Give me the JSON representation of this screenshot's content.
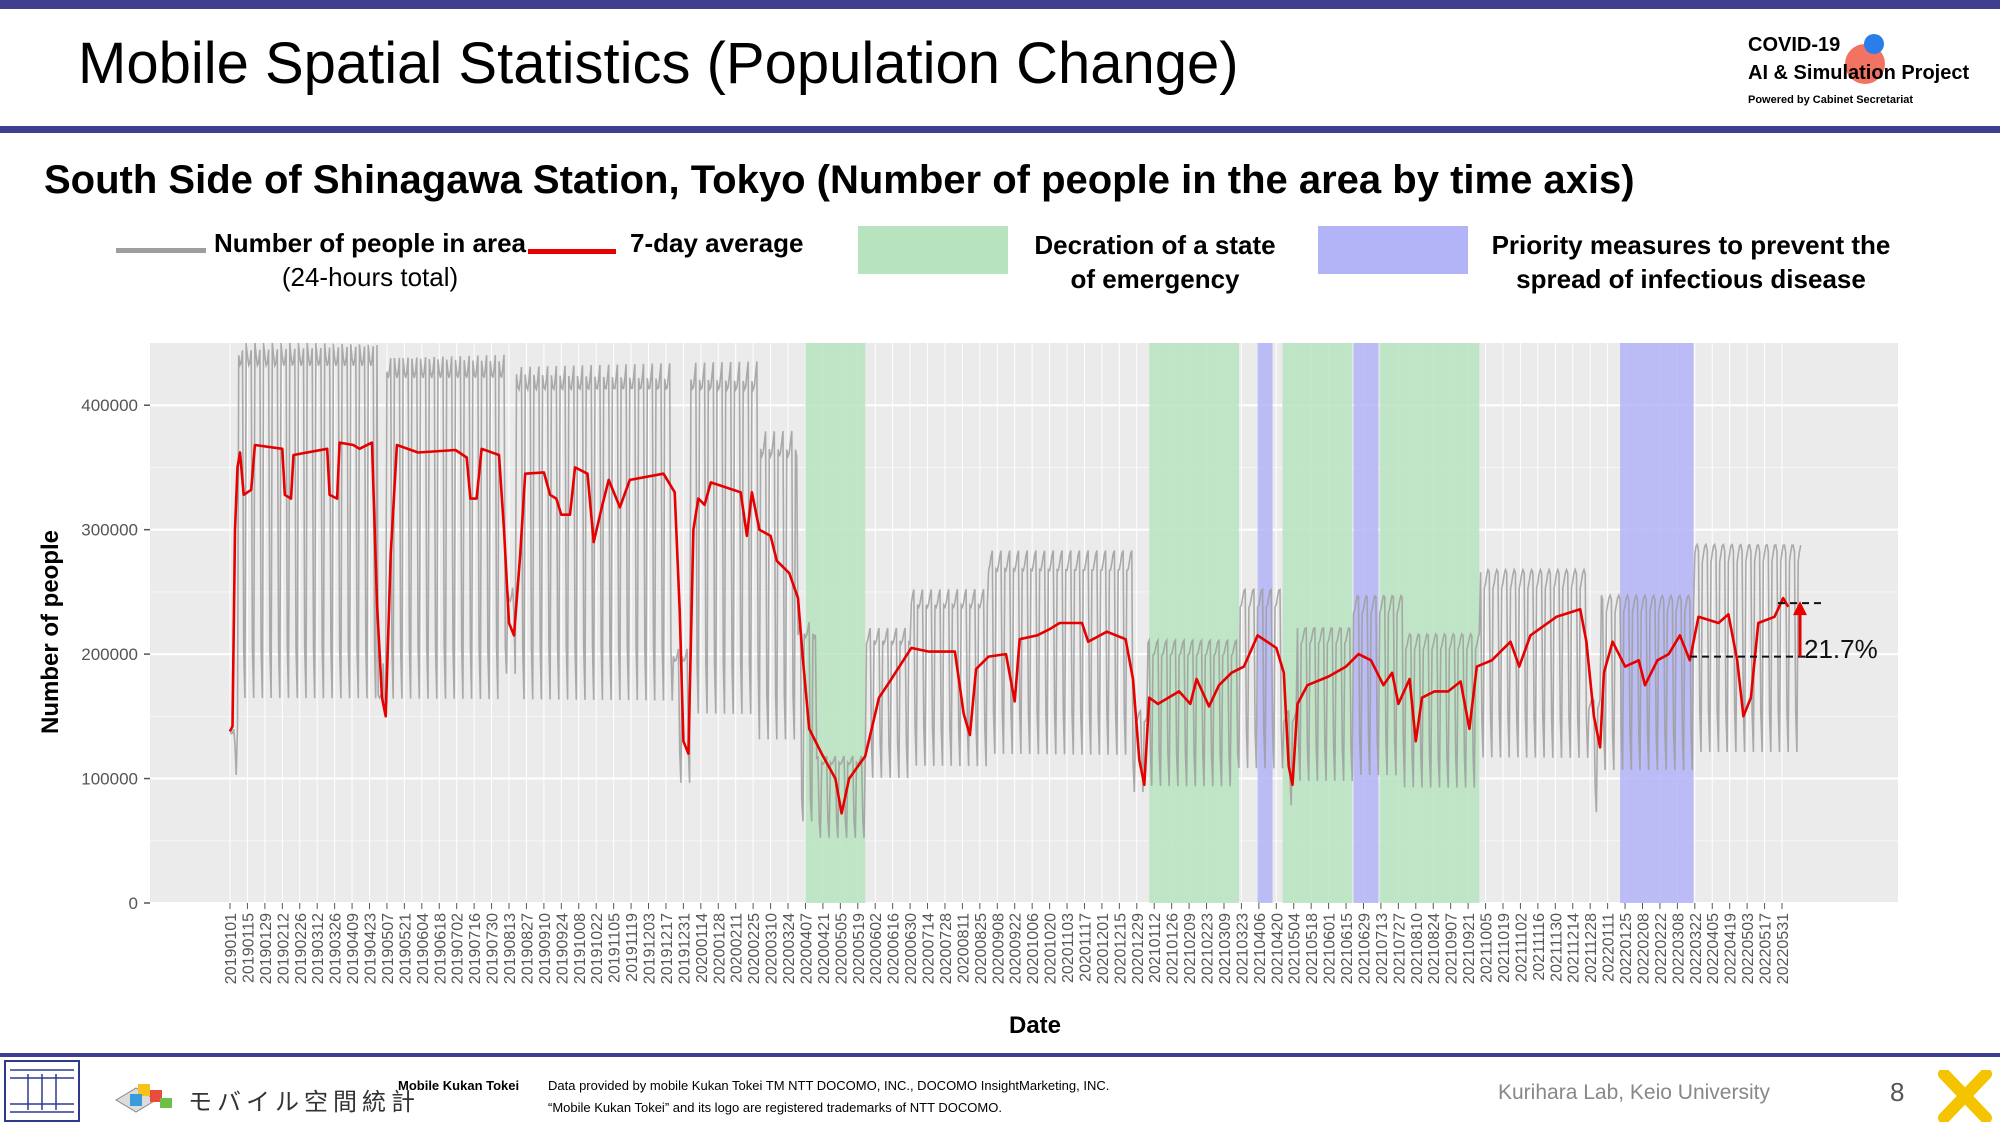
{
  "slide": {
    "title": "Mobile Spatial Statistics (Population Change)",
    "page_number": "8",
    "brand_colors": {
      "top_bar": "#3f3f8f"
    }
  },
  "logo": {
    "line1": "COVID-19",
    "line2": "AI & Simulation Project",
    "line3": "Powered by Cabinet Secretariat"
  },
  "legend": {
    "people_label": "Number of people in area",
    "people_sub": "(24-hours total)",
    "avg_label": "7-day average",
    "emergency_label": "Decration of a state of emergency",
    "priority_label": "Priority measures to prevent the spread of infectious disease",
    "colors": {
      "people": "#9e9e9e",
      "avg": "#e60000",
      "emergency": "#b7e3bf",
      "priority": "#b3b3f7"
    }
  },
  "annotation": {
    "label": "21.7%"
  },
  "footer": {
    "brand_jp": "モバイル空間統計",
    "brand_en": "Mobile Kukan Tokei",
    "credit_line1": "Data provided by mobile Kukan Tokei TM NTT DOCOMO, INC., DOCOMO InsightMarketing, INC.",
    "credit_line2": "“Mobile Kukan Tokei” and its logo are registered trademarks of NTT DOCOMO.",
    "lab": "Kurihara Lab, Keio University"
  },
  "chart_data": {
    "type": "line",
    "title": "South Side of Shinagawa Station, Tokyo (Number of people in the area by time axis)",
    "xlabel": "Date",
    "ylabel": "Number of people",
    "ylim": [
      0,
      450000
    ],
    "yticks": [
      0,
      100000,
      200000,
      300000,
      400000
    ],
    "ytick_labels": [
      "0",
      "100000",
      "200000",
      "300000",
      "400000"
    ],
    "xlim": [
      "20190101",
      "20220615"
    ],
    "x_tick_labels": [
      "20190101",
      "20190115",
      "20190129",
      "20190212",
      "20190226",
      "20190312",
      "20190326",
      "20190409",
      "20190423",
      "20190507",
      "20190521",
      "20190604",
      "20190618",
      "20190702",
      "20190716",
      "20190730",
      "20190813",
      "20190827",
      "20190910",
      "20190924",
      "20191008",
      "20191022",
      "20191105",
      "20191119",
      "20191203",
      "20191217",
      "20191231",
      "20200114",
      "20200128",
      "20200211",
      "20200225",
      "20200310",
      "20200324",
      "20200407",
      "20200421",
      "20200505",
      "20200519",
      "20200602",
      "20200616",
      "20200630",
      "20200714",
      "20200728",
      "20200811",
      "20200825",
      "20200908",
      "20200922",
      "20201006",
      "20201020",
      "20201103",
      "20201117",
      "20201201",
      "20201215",
      "20201229",
      "20210112",
      "20210126",
      "20210209",
      "20210223",
      "20210309",
      "20210323",
      "20210406",
      "20210420",
      "20210504",
      "20210518",
      "20210601",
      "20210615",
      "20210629",
      "20210713",
      "20210727",
      "20210810",
      "20210824",
      "20210907",
      "20210921",
      "20211005",
      "20211019",
      "20211102",
      "20211116",
      "20211130",
      "20211214",
      "20211228",
      "20220111",
      "20220125",
      "20220208",
      "20220222",
      "20220308",
      "20220322",
      "20220405",
      "20220419",
      "20220503",
      "20220517",
      "20220531"
    ],
    "grid": true,
    "legend_position": "top",
    "shaded_periods": [
      {
        "type": "emergency",
        "start": "20200407",
        "end": "20200525"
      },
      {
        "type": "emergency",
        "start": "20210108",
        "end": "20210321"
      },
      {
        "type": "priority",
        "start": "20210405",
        "end": "20210417"
      },
      {
        "type": "emergency",
        "start": "20210425",
        "end": "20210620"
      },
      {
        "type": "priority",
        "start": "20210621",
        "end": "20210711"
      },
      {
        "type": "emergency",
        "start": "20210712",
        "end": "20210930"
      },
      {
        "type": "priority",
        "start": "20220121",
        "end": "20220321"
      }
    ],
    "series": [
      {
        "name": "Number of people in area",
        "kind": "daily",
        "segments": [
          {
            "start": "20190101",
            "end": "20190107",
            "weekday": 140000,
            "weekend": 100000
          },
          {
            "start": "20190108",
            "end": "20190429",
            "weekday": 445000,
            "weekend": 160000
          },
          {
            "start": "20190430",
            "end": "20190506",
            "weekday": 170000,
            "weekend": 150000
          },
          {
            "start": "20190507",
            "end": "20190810",
            "weekday": 435000,
            "weekend": 160000
          },
          {
            "start": "20190811",
            "end": "20190818",
            "weekday": 250000,
            "weekend": 180000
          },
          {
            "start": "20190819",
            "end": "20191222",
            "weekday": 425000,
            "weekend": 160000
          },
          {
            "start": "20191223",
            "end": "20200105",
            "weekday": 200000,
            "weekend": 95000
          },
          {
            "start": "20200106",
            "end": "20200229",
            "weekday": 425000,
            "weekend": 150000
          },
          {
            "start": "20200301",
            "end": "20200331",
            "weekday": 370000,
            "weekend": 130000
          },
          {
            "start": "20200401",
            "end": "20200415",
            "weekday": 220000,
            "weekend": 65000
          },
          {
            "start": "20200416",
            "end": "20200525",
            "weekday": 115000,
            "weekend": 52000
          },
          {
            "start": "20200526",
            "end": "20200630",
            "weekday": 215000,
            "weekend": 100000
          },
          {
            "start": "20200701",
            "end": "20200831",
            "weekday": 245000,
            "weekend": 110000
          },
          {
            "start": "20200901",
            "end": "20201225",
            "weekday": 275000,
            "weekend": 120000
          },
          {
            "start": "20201226",
            "end": "20210106",
            "weekday": 150000,
            "weekend": 90000
          },
          {
            "start": "20210107",
            "end": "20210320",
            "weekday": 205000,
            "weekend": 95000
          },
          {
            "start": "20210321",
            "end": "20210425",
            "weekday": 245000,
            "weekend": 110000
          },
          {
            "start": "20210426",
            "end": "20210506",
            "weekday": 150000,
            "weekend": 80000
          },
          {
            "start": "20210507",
            "end": "20210620",
            "weekday": 215000,
            "weekend": 100000
          },
          {
            "start": "20210621",
            "end": "20210731",
            "weekday": 240000,
            "weekend": 105000
          },
          {
            "start": "20210801",
            "end": "20210930",
            "weekday": 210000,
            "weekend": 95000
          },
          {
            "start": "20211001",
            "end": "20211226",
            "weekday": 260000,
            "weekend": 120000
          },
          {
            "start": "20211227",
            "end": "20220105",
            "weekday": 160000,
            "weekend": 75000
          },
          {
            "start": "20220106",
            "end": "20220321",
            "weekday": 240000,
            "weekend": 110000
          },
          {
            "start": "20220322",
            "end": "20220615",
            "weekday": 280000,
            "weekend": 125000
          }
        ]
      },
      {
        "name": "7-day average",
        "points": [
          [
            "20190101",
            138000
          ],
          [
            "20190103",
            142000
          ],
          [
            "20190105",
            300000
          ],
          [
            "20190107",
            350000
          ],
          [
            "20190109",
            362000
          ],
          [
            "20190112",
            328000
          ],
          [
            "20190118",
            332000
          ],
          [
            "20190121",
            368000
          ],
          [
            "20190212",
            365000
          ],
          [
            "20190214",
            328000
          ],
          [
            "20190219",
            325000
          ],
          [
            "20190221",
            360000
          ],
          [
            "20190320",
            365000
          ],
          [
            "20190322",
            328000
          ],
          [
            "20190328",
            325000
          ],
          [
            "20190330",
            370000
          ],
          [
            "20190410",
            368000
          ],
          [
            "20190415",
            365000
          ],
          [
            "20190425",
            370000
          ],
          [
            "20190429",
            240000
          ],
          [
            "20190503",
            165000
          ],
          [
            "20190506",
            150000
          ],
          [
            "20190510",
            280000
          ],
          [
            "20190515",
            368000
          ],
          [
            "20190601",
            362000
          ],
          [
            "20190701",
            364000
          ],
          [
            "20190710",
            358000
          ],
          [
            "20190713",
            325000
          ],
          [
            "20190718",
            325000
          ],
          [
            "20190722",
            365000
          ],
          [
            "20190805",
            360000
          ],
          [
            "20190809",
            300000
          ],
          [
            "20190813",
            225000
          ],
          [
            "20190817",
            215000
          ],
          [
            "20190822",
            280000
          ],
          [
            "20190826",
            345000
          ],
          [
            "20190910",
            346000
          ],
          [
            "20190915",
            328000
          ],
          [
            "20190920",
            325000
          ],
          [
            "20190924",
            312000
          ],
          [
            "20191001",
            312000
          ],
          [
            "20191005",
            350000
          ],
          [
            "20191015",
            345000
          ],
          [
            "20191020",
            290000
          ],
          [
            "20191027",
            320000
          ],
          [
            "20191101",
            340000
          ],
          [
            "20191110",
            318000
          ],
          [
            "20191118",
            340000
          ],
          [
            "20191215",
            345000
          ],
          [
            "20191224",
            330000
          ],
          [
            "20191228",
            235000
          ],
          [
            "20191231",
            130000
          ],
          [
            "20200104",
            120000
          ],
          [
            "20200108",
            300000
          ],
          [
            "20200112",
            325000
          ],
          [
            "20200117",
            320000
          ],
          [
            "20200122",
            338000
          ],
          [
            "20200215",
            330000
          ],
          [
            "20200220",
            295000
          ],
          [
            "20200224",
            330000
          ],
          [
            "20200301",
            300000
          ],
          [
            "20200310",
            295000
          ],
          [
            "20200315",
            275000
          ],
          [
            "20200325",
            265000
          ],
          [
            "20200401",
            245000
          ],
          [
            "20200405",
            195000
          ],
          [
            "20200410",
            140000
          ],
          [
            "20200420",
            120000
          ],
          [
            "20200501",
            100000
          ],
          [
            "20200506",
            72000
          ],
          [
            "20200512",
            100000
          ],
          [
            "20200525",
            118000
          ],
          [
            "20200605",
            165000
          ],
          [
            "20200615",
            180000
          ],
          [
            "20200701",
            205000
          ],
          [
            "20200715",
            202000
          ],
          [
            "20200805",
            202000
          ],
          [
            "20200812",
            152000
          ],
          [
            "20200817",
            135000
          ],
          [
            "20200822",
            188000
          ],
          [
            "20200901",
            198000
          ],
          [
            "20200915",
            200000
          ],
          [
            "20200922",
            162000
          ],
          [
            "20200926",
            212000
          ],
          [
            "20201010",
            215000
          ],
          [
            "20201020",
            220000
          ],
          [
            "20201028",
            225000
          ],
          [
            "20201115",
            225000
          ],
          [
            "20201120",
            210000
          ],
          [
            "20201205",
            218000
          ],
          [
            "20201220",
            212000
          ],
          [
            "20201226",
            180000
          ],
          [
            "20201231",
            115000
          ],
          [
            "20210104",
            95000
          ],
          [
            "20210108",
            165000
          ],
          [
            "20210115",
            160000
          ],
          [
            "20210201",
            170000
          ],
          [
            "20210210",
            160000
          ],
          [
            "20210215",
            180000
          ],
          [
            "20210225",
            158000
          ],
          [
            "20210305",
            175000
          ],
          [
            "20210315",
            185000
          ],
          [
            "20210325",
            190000
          ],
          [
            "20210405",
            215000
          ],
          [
            "20210420",
            205000
          ],
          [
            "20210426",
            185000
          ],
          [
            "20210430",
            110000
          ],
          [
            "20210503",
            95000
          ],
          [
            "20210507",
            160000
          ],
          [
            "20210515",
            175000
          ],
          [
            "20210601",
            182000
          ],
          [
            "20210615",
            190000
          ],
          [
            "20210625",
            200000
          ],
          [
            "20210705",
            195000
          ],
          [
            "20210715",
            175000
          ],
          [
            "20210722",
            185000
          ],
          [
            "20210727",
            160000
          ],
          [
            "20210805",
            180000
          ],
          [
            "20210810",
            130000
          ],
          [
            "20210815",
            165000
          ],
          [
            "20210825",
            170000
          ],
          [
            "20210905",
            170000
          ],
          [
            "20210915",
            178000
          ],
          [
            "20210922",
            140000
          ],
          [
            "20210928",
            190000
          ],
          [
            "20211010",
            195000
          ],
          [
            "20211025",
            210000
          ],
          [
            "20211101",
            190000
          ],
          [
            "20211110",
            215000
          ],
          [
            "20211201",
            230000
          ],
          [
            "20211220",
            236000
          ],
          [
            "20211225",
            210000
          ],
          [
            "20211231",
            150000
          ],
          [
            "20220105",
            125000
          ],
          [
            "20220108",
            185000
          ],
          [
            "20220115",
            210000
          ],
          [
            "20220125",
            190000
          ],
          [
            "20220205",
            195000
          ],
          [
            "20220210",
            175000
          ],
          [
            "20220220",
            195000
          ],
          [
            "20220301",
            200000
          ],
          [
            "20220310",
            215000
          ],
          [
            "20220318",
            195000
          ],
          [
            "20220325",
            230000
          ],
          [
            "20220410",
            225000
          ],
          [
            "20220418",
            232000
          ],
          [
            "20220425",
            195000
          ],
          [
            "20220430",
            150000
          ],
          [
            "20220506",
            165000
          ],
          [
            "20220512",
            225000
          ],
          [
            "20220525",
            230000
          ],
          [
            "20220601",
            245000
          ],
          [
            "20220605",
            238000
          ]
        ]
      }
    ],
    "annotations": [
      {
        "text": "21.7%",
        "from_value": 198000,
        "to_value": 241000
      }
    ]
  }
}
